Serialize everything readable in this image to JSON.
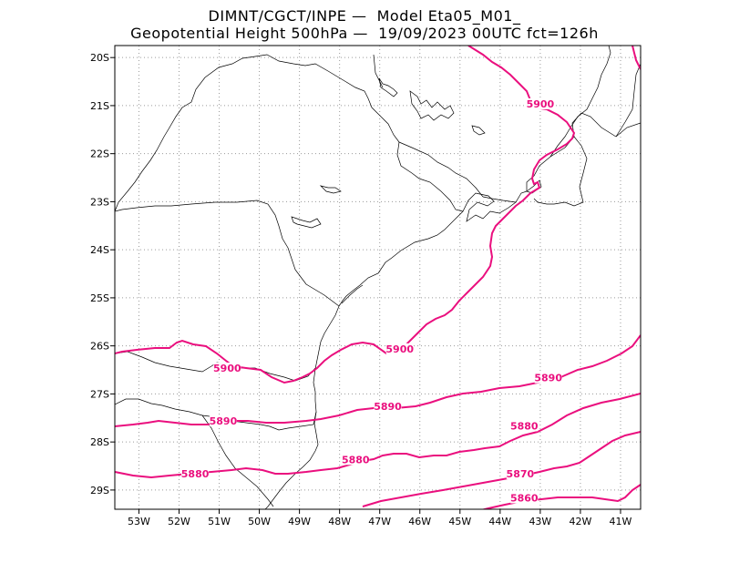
{
  "title": {
    "line1": "DIMNT/CGCT/INPE —  Model Eta05_M01_",
    "line2": "Geopotential Height 500hPa —  19/09/2023 00UTC fct=126h"
  },
  "axes": {
    "lon_ticks": [
      "53W",
      "52W",
      "51W",
      "50W",
      "49W",
      "48W",
      "47W",
      "46W",
      "45W",
      "44W",
      "43W",
      "42W",
      "41W"
    ],
    "lat_ticks": [
      "20S",
      "21S",
      "22S",
      "23S",
      "24S",
      "25S",
      "26S",
      "27S",
      "28S",
      "29S"
    ],
    "lon_range": [
      -53.6,
      -40.5
    ],
    "lat_range": [
      -29.4,
      -19.75
    ]
  },
  "colors": {
    "contour": "#ea0f7e",
    "coast": "#000000",
    "border": "#000000",
    "grid": "#9a9a9a"
  },
  "contour_labels": [
    {
      "text": "5900",
      "lon": -43.0,
      "lat": -21.0
    },
    {
      "text": "5900",
      "lon": -46.5,
      "lat": -26.1
    },
    {
      "text": "5900",
      "lon": -50.8,
      "lat": -26.5
    },
    {
      "text": "5890",
      "lon": -42.8,
      "lat": -26.7
    },
    {
      "text": "5890",
      "lon": -46.8,
      "lat": -27.3
    },
    {
      "text": "5890",
      "lon": -50.9,
      "lat": -27.6
    },
    {
      "text": "5880",
      "lon": -43.4,
      "lat": -27.7
    },
    {
      "text": "5880",
      "lon": -47.6,
      "lat": -28.4
    },
    {
      "text": "5880",
      "lon": -51.6,
      "lat": -28.7
    },
    {
      "text": "5870",
      "lon": -43.5,
      "lat": -28.7
    },
    {
      "text": "5860",
      "lon": -43.4,
      "lat": -29.2
    }
  ],
  "icons": {
    "map": "map-plot-icon"
  }
}
